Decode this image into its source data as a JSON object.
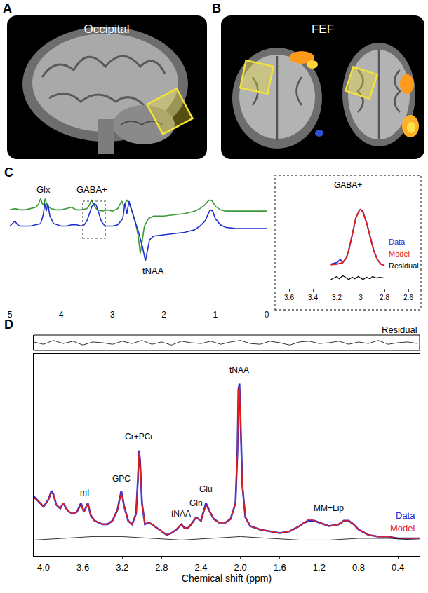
{
  "panels": [
    {
      "label": "A",
      "title": "Occipital"
    },
    {
      "label": "B",
      "title": "FEF"
    }
  ],
  "chart_data": [
    {
      "panel": "C",
      "type": "line",
      "xlim": [
        5,
        0
      ],
      "xticks": [
        5,
        4,
        3,
        2,
        1,
        0
      ],
      "ylim": [
        0,
        100
      ],
      "tick_labels": "x",
      "series": [
        {
          "color": "#3a9a3a",
          "x": [
            5.0,
            4.9,
            4.8,
            4.7,
            4.6,
            4.5,
            4.45,
            4.4,
            4.37,
            4.34,
            4.31,
            4.28,
            4.2,
            4.1,
            4.0,
            3.9,
            3.8,
            3.7,
            3.6,
            3.5,
            3.45,
            3.41,
            3.37,
            3.3,
            3.2,
            3.1,
            3.0,
            2.9,
            2.82,
            2.78,
            2.72,
            2.68,
            2.62,
            2.56,
            2.5,
            2.46,
            2.42,
            2.38,
            2.3,
            2.2,
            2.0,
            1.8,
            1.6,
            1.4,
            1.3,
            1.2,
            1.14,
            1.1,
            1.06,
            1.0,
            0.9,
            0.8,
            0.6,
            0.4,
            0.2,
            0.0
          ],
          "values": [
            79,
            80,
            79,
            79,
            80,
            81,
            83,
            88,
            84,
            83,
            88,
            83,
            80,
            79,
            79,
            80,
            81,
            79,
            79,
            80,
            83,
            87,
            83,
            79,
            78,
            79,
            78,
            80,
            86,
            82,
            87,
            84,
            78,
            70,
            58,
            44,
            55,
            66,
            72,
            74,
            74,
            75,
            76,
            78,
            80,
            83,
            86,
            87,
            86,
            82,
            79,
            78,
            78,
            78,
            78,
            78
          ]
        },
        {
          "color": "#1f2fd0",
          "x": [
            5.0,
            4.9,
            4.85,
            4.8,
            4.7,
            4.6,
            4.5,
            4.4,
            4.35,
            4.32,
            4.29,
            4.26,
            4.22,
            4.15,
            4.0,
            3.9,
            3.8,
            3.7,
            3.6,
            3.55,
            3.5,
            3.45,
            3.4,
            3.36,
            3.32,
            3.28,
            3.22,
            3.15,
            3.0,
            2.9,
            2.8,
            2.76,
            2.72,
            2.68,
            2.64,
            2.58,
            2.5,
            2.42,
            2.36,
            2.32,
            2.28,
            2.2,
            2.0,
            1.8,
            1.6,
            1.4,
            1.3,
            1.2,
            1.15,
            1.1,
            1.05,
            1.0,
            0.9,
            0.8,
            0.6,
            0.4,
            0.2,
            0.0
          ],
          "values": [
            66,
            70,
            67,
            66,
            66,
            66,
            67,
            68,
            75,
            84,
            78,
            84,
            74,
            68,
            66,
            66,
            67,
            67,
            66,
            67,
            70,
            76,
            82,
            84,
            83,
            78,
            70,
            66,
            66,
            67,
            72,
            84,
            76,
            86,
            80,
            72,
            62,
            50,
            38,
            46,
            55,
            58,
            59,
            60,
            61,
            63,
            66,
            70,
            75,
            79,
            78,
            72,
            67,
            65,
            64,
            64,
            64,
            64
          ]
        }
      ],
      "annotations": [
        {
          "text": "Glx",
          "x": 4.35,
          "y": 95
        },
        {
          "text": "GABA+",
          "x": 3.4,
          "y": 95
        },
        {
          "text": "tNAA",
          "x": 2.2,
          "y": 30
        }
      ]
    },
    {
      "title": "GABA+",
      "type": "line",
      "xlim": [
        3.6,
        2.6
      ],
      "xticks": [
        3.6,
        3.4,
        3.2,
        3,
        2.8,
        2.6
      ],
      "ylim": [
        -20,
        100
      ],
      "tick_labels": "x",
      "series": [
        {
          "name": "Data",
          "color": "#2b2bd6",
          "x": [
            3.25,
            3.2,
            3.17,
            3.15,
            3.12,
            3.1,
            3.07,
            3.04,
            3.01,
            3.0,
            2.98,
            2.95,
            2.92,
            2.89,
            2.86,
            2.83,
            2.8
          ],
          "values": [
            12,
            14,
            18,
            14,
            20,
            30,
            50,
            72,
            82,
            83,
            80,
            66,
            48,
            30,
            18,
            12,
            10
          ]
        },
        {
          "name": "Model",
          "color": "#e0201a",
          "x": [
            3.25,
            3.2,
            3.15,
            3.12,
            3.1,
            3.07,
            3.04,
            3.01,
            3.0,
            2.98,
            2.95,
            2.92,
            2.89,
            2.86,
            2.83,
            2.8
          ],
          "values": [
            11,
            12,
            14,
            20,
            30,
            52,
            72,
            82,
            83,
            79,
            65,
            47,
            29,
            18,
            12,
            10
          ]
        },
        {
          "name": "Residual",
          "color": "#000000",
          "x": [
            3.25,
            3.22,
            3.2,
            3.18,
            3.15,
            3.12,
            3.1,
            3.07,
            3.05,
            3.02,
            3.0,
            2.98,
            2.95,
            2.92,
            2.9,
            2.87,
            2.84,
            2.8
          ],
          "values": [
            -8,
            -6,
            -4,
            -7,
            -3,
            -6,
            -8,
            -5,
            -7,
            -4,
            -6,
            -8,
            -5,
            -7,
            -4,
            -6,
            -5,
            -6
          ]
        }
      ]
    },
    {
      "panel": "D",
      "type": "line",
      "x_label": "Chemical shift (ppm)",
      "xlim": [
        4.1,
        0.18
      ],
      "xticks": [
        {
          "value": 4,
          "label": "4.0"
        },
        3.6,
        3.2,
        2.8,
        2.4,
        {
          "value": 2,
          "label": "2.0"
        },
        1.6,
        1.2,
        0.8,
        0.4
      ],
      "ylim": [
        0,
        115
      ],
      "y2lim": [
        -10,
        10
      ],
      "tick_labels": "x",
      "series": [
        {
          "name": "Data",
          "color": "#2b2bd6",
          "x": [
            4.1,
            4.05,
            4.0,
            3.95,
            3.92,
            3.9,
            3.87,
            3.83,
            3.8,
            3.77,
            3.74,
            3.7,
            3.66,
            3.62,
            3.59,
            3.55,
            3.52,
            3.48,
            3.44,
            3.4,
            3.35,
            3.3,
            3.25,
            3.21,
            3.18,
            3.14,
            3.1,
            3.06,
            3.04,
            3.03,
            3.02,
            3.0,
            2.97,
            2.93,
            2.9,
            2.85,
            2.8,
            2.75,
            2.7,
            2.65,
            2.6,
            2.57,
            2.53,
            2.5,
            2.45,
            2.4,
            2.35,
            2.31,
            2.27,
            2.22,
            2.15,
            2.1,
            2.05,
            2.03,
            2.02,
            2.01,
            2.0,
            1.98,
            1.95,
            1.9,
            1.85,
            1.8,
            1.7,
            1.6,
            1.5,
            1.4,
            1.35,
            1.3,
            1.25,
            1.2,
            1.1,
            1.0,
            0.95,
            0.9,
            0.85,
            0.8,
            0.7,
            0.6,
            0.5,
            0.4,
            0.3,
            0.2,
            0.18
          ],
          "values": [
            34,
            31,
            28,
            32,
            37,
            35,
            29,
            27,
            30,
            27,
            25,
            24,
            25,
            30,
            25,
            30,
            23,
            20,
            19,
            18,
            18,
            20,
            26,
            37,
            28,
            20,
            18,
            24,
            45,
            60,
            55,
            30,
            18,
            19,
            18,
            16,
            14,
            12,
            13,
            15,
            18,
            16,
            16,
            18,
            22,
            20,
            30,
            25,
            21,
            19,
            19,
            21,
            30,
            60,
            95,
            98,
            80,
            40,
            22,
            17,
            16,
            15,
            14,
            13,
            14,
            17,
            19,
            20,
            20,
            19,
            17,
            18,
            20,
            20,
            18,
            15,
            12,
            11,
            11,
            10,
            10,
            10,
            10
          ]
        },
        {
          "name": "Model",
          "color": "#e0201a",
          "x": [
            4.1,
            4.05,
            4.0,
            3.95,
            3.92,
            3.9,
            3.87,
            3.83,
            3.8,
            3.77,
            3.74,
            3.7,
            3.66,
            3.62,
            3.59,
            3.55,
            3.52,
            3.48,
            3.44,
            3.4,
            3.35,
            3.3,
            3.25,
            3.21,
            3.18,
            3.14,
            3.1,
            3.06,
            3.04,
            3.03,
            3.02,
            3.0,
            2.97,
            2.93,
            2.9,
            2.85,
            2.8,
            2.75,
            2.7,
            2.65,
            2.6,
            2.57,
            2.53,
            2.5,
            2.45,
            2.4,
            2.35,
            2.31,
            2.27,
            2.22,
            2.15,
            2.1,
            2.05,
            2.03,
            2.02,
            2.01,
            2.0,
            1.98,
            1.95,
            1.9,
            1.85,
            1.8,
            1.7,
            1.6,
            1.5,
            1.4,
            1.35,
            1.3,
            1.25,
            1.2,
            1.1,
            1.0,
            0.95,
            0.9,
            0.85,
            0.8,
            0.7,
            0.6,
            0.5,
            0.4,
            0.3,
            0.2,
            0.18
          ],
          "values": [
            33,
            31,
            28,
            32,
            36,
            35,
            29,
            27,
            30,
            27,
            25,
            24,
            25,
            29,
            25,
            30,
            23,
            20,
            19,
            18,
            18,
            20,
            26,
            36,
            28,
            20,
            18,
            24,
            45,
            59,
            55,
            30,
            18,
            19,
            18,
            16,
            14,
            12,
            13,
            15,
            18,
            16,
            16,
            18,
            22,
            20,
            29,
            25,
            21,
            19,
            19,
            21,
            30,
            60,
            95,
            97,
            80,
            40,
            22,
            17,
            16,
            15,
            14,
            13,
            14,
            17,
            19,
            21,
            20,
            19,
            17,
            18,
            20,
            20,
            18,
            15,
            12,
            11,
            11,
            10,
            10,
            10,
            10
          ]
        },
        {
          "color": "#000000",
          "x": [
            4.1,
            3.8,
            3.5,
            3.2,
            2.9,
            2.6,
            2.3,
            2.0,
            1.7,
            1.4,
            1.1,
            0.8,
            0.5,
            0.18
          ],
          "values": [
            9,
            10,
            11,
            11,
            10,
            9,
            10,
            11,
            10,
            9,
            9,
            10,
            10,
            9
          ]
        },
        {
          "name": "Residual",
          "color": "#000000",
          "axis": "y2",
          "x": [
            4.1,
            4.0,
            3.9,
            3.8,
            3.7,
            3.6,
            3.5,
            3.4,
            3.3,
            3.2,
            3.1,
            3.0,
            2.9,
            2.8,
            2.7,
            2.6,
            2.5,
            2.4,
            2.3,
            2.2,
            2.1,
            2.0,
            1.9,
            1.8,
            1.7,
            1.6,
            1.5,
            1.4,
            1.3,
            1.2,
            1.1,
            1.0,
            0.9,
            0.8,
            0.7,
            0.6,
            0.5,
            0.4,
            0.3,
            0.2
          ],
          "values": [
            1,
            -2,
            3,
            -1,
            2,
            -3,
            1,
            0,
            -2,
            2,
            -1,
            3,
            -2,
            1,
            -3,
            2,
            0,
            -1,
            2,
            -2,
            1,
            3,
            -1,
            -2,
            2,
            0,
            -3,
            1,
            2,
            -1,
            0,
            2,
            -2,
            1,
            -1,
            3,
            -2,
            0,
            1,
            -1
          ]
        }
      ],
      "annotations": [
        {
          "text": "mI",
          "x": 3.585,
          "y": 36
        },
        {
          "text": "GPC",
          "x": 3.21,
          "y": 44
        },
        {
          "text": "Cr+PCr",
          "x": 3.03,
          "y": 68
        },
        {
          "text": "tNAA",
          "x": 2.6,
          "y": 24
        },
        {
          "text": "Gln",
          "x": 2.45,
          "y": 30
        },
        {
          "text": "Glu",
          "x": 2.35,
          "y": 38
        },
        {
          "text": "tNAA",
          "x": 2.01,
          "y": 106
        },
        {
          "text": "MM+Lip",
          "x": 1.1,
          "y": 27
        }
      ]
    }
  ]
}
